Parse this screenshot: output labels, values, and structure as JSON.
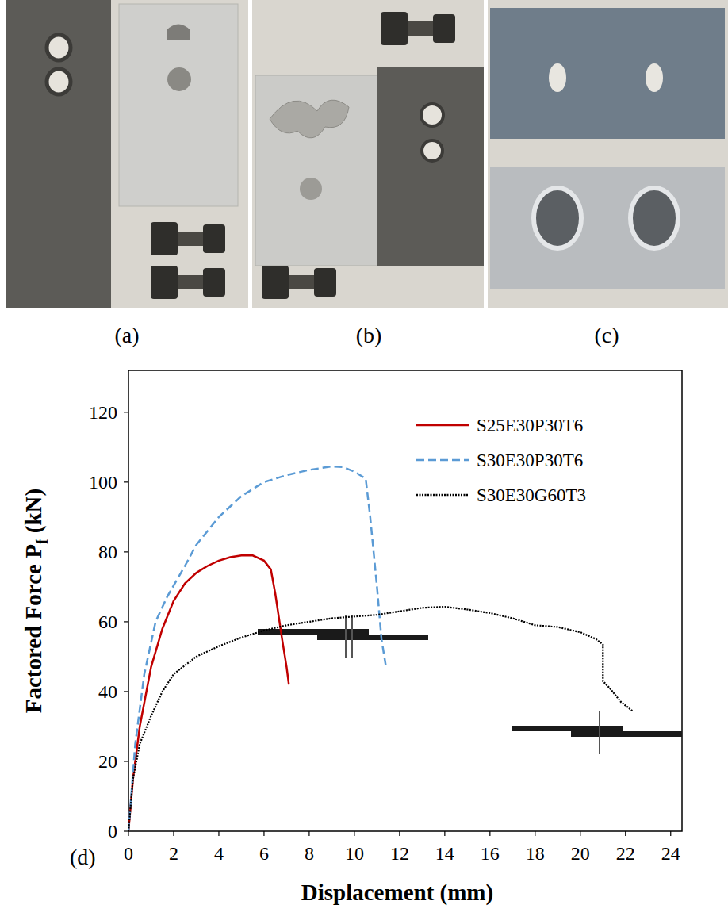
{
  "photo_labels": [
    "(a)",
    "(b)",
    "(c)"
  ],
  "chart_data": {
    "type": "line",
    "panel_label": "(d)",
    "xlabel": "Displacement (mm)",
    "ylabel": [
      "Factored Force P",
      "f",
      " (kN)"
    ],
    "xlim": [
      0,
      24.5
    ],
    "ylim": [
      0,
      132
    ],
    "xticks": [
      0,
      2,
      4,
      6,
      8,
      10,
      12,
      14,
      16,
      18,
      20,
      22,
      24
    ],
    "yticks": [
      0,
      20,
      40,
      60,
      80,
      100,
      120
    ],
    "grid": false,
    "legend": "top-right",
    "series": [
      {
        "name": "S25E30P30T6",
        "color": "#c00000",
        "line_style": "solid",
        "x": [
          0,
          0.2,
          0.5,
          1,
          1.5,
          2,
          2.5,
          3,
          3.5,
          4,
          4.5,
          5,
          5.5,
          6,
          6.3,
          6.5,
          6.8,
          7,
          7.1
        ],
        "values": [
          0,
          15,
          30,
          47,
          58,
          66,
          71,
          74,
          76,
          77.5,
          78.5,
          79,
          79,
          77.5,
          75,
          68,
          55,
          47,
          42
        ]
      },
      {
        "name": "S30E30P30T6",
        "color": "#5b9bd5",
        "line_style": "dashed",
        "x": [
          0,
          0.3,
          0.7,
          1.2,
          1.7,
          2.5,
          3,
          4,
          5,
          6,
          7,
          8,
          9,
          9.5,
          10,
          10.5,
          10.7,
          11,
          11.2,
          11.4
        ],
        "values": [
          0,
          25,
          45,
          60,
          67,
          76,
          82,
          90,
          96,
          100,
          102,
          103.5,
          104.5,
          104.3,
          103,
          101,
          90,
          70,
          55,
          47
        ]
      },
      {
        "name": "S30E30G60T3",
        "color": "#000000",
        "line_style": "dotted",
        "x": [
          0,
          0.2,
          0.5,
          1,
          1.5,
          2,
          3,
          4,
          5,
          6,
          7,
          8,
          9,
          10,
          11,
          12,
          13,
          14,
          15,
          16,
          17,
          18,
          19,
          20,
          20.7,
          21,
          21,
          21.3,
          21.8,
          22.3
        ],
        "values": [
          0,
          15,
          25,
          33,
          40,
          45,
          50,
          53,
          55.5,
          57.5,
          59,
          60,
          61,
          61.5,
          62,
          63,
          64,
          64.3,
          63.5,
          62.5,
          61,
          59,
          58.5,
          57,
          55,
          53.5,
          43,
          41,
          37,
          34.5
        ]
      }
    ]
  }
}
